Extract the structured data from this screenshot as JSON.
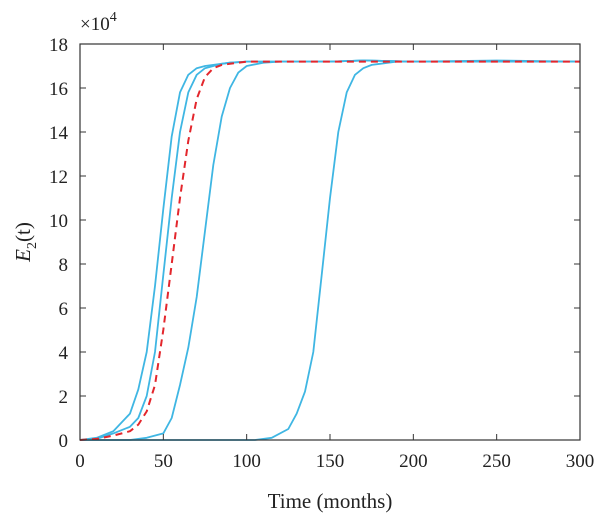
{
  "chart_data": {
    "type": "line",
    "title": "",
    "xlabel": "Time (months)",
    "ylabel_main": "E",
    "ylabel_sub": "2",
    "ylabel_tail": "(t)",
    "y_multiplier_base": "×10",
    "y_multiplier_exp": "4",
    "xlim": [
      0,
      300
    ],
    "ylim": [
      0,
      18
    ],
    "xticks": [
      0,
      50,
      100,
      150,
      200,
      250,
      300
    ],
    "yticks": [
      0,
      2,
      4,
      6,
      8,
      10,
      12,
      14,
      16,
      18
    ],
    "grid": false,
    "legend": false,
    "colors": {
      "solid": "#3fb6e3",
      "dashed": "#e3262c",
      "axis": "#333333"
    },
    "series": [
      {
        "style": "solid",
        "x": [
          0,
          10,
          20,
          30,
          35,
          40,
          45,
          50,
          55,
          60,
          65,
          70,
          75,
          80,
          85,
          90,
          100,
          120,
          150,
          170,
          200,
          250,
          300
        ],
        "y": [
          0,
          0.1,
          0.4,
          1.2,
          2.3,
          4.0,
          7.0,
          10.5,
          13.8,
          15.8,
          16.6,
          16.9,
          17.0,
          17.05,
          17.1,
          17.15,
          17.2,
          17.2,
          17.2,
          17.25,
          17.2,
          17.2,
          17.2
        ]
      },
      {
        "style": "solid",
        "x": [
          0,
          10,
          20,
          30,
          35,
          40,
          45,
          50,
          55,
          60,
          65,
          70,
          75,
          80,
          85,
          90,
          100,
          120,
          150,
          170,
          200,
          250,
          300
        ],
        "y": [
          0,
          0.05,
          0.3,
          0.6,
          1.0,
          2.0,
          4.0,
          7.5,
          11.0,
          14.0,
          15.8,
          16.6,
          16.9,
          17.0,
          17.1,
          17.15,
          17.2,
          17.2,
          17.2,
          17.25,
          17.2,
          17.2,
          17.2
        ]
      },
      {
        "style": "dashed",
        "x": [
          0,
          10,
          20,
          30,
          35,
          40,
          45,
          50,
          55,
          60,
          65,
          70,
          75,
          80,
          85,
          90,
          100,
          120,
          150,
          170,
          200,
          250,
          300
        ],
        "y": [
          0,
          0.05,
          0.2,
          0.4,
          0.7,
          1.3,
          2.5,
          5.0,
          8.0,
          11.0,
          13.6,
          15.5,
          16.5,
          16.9,
          17.05,
          17.1,
          17.2,
          17.2,
          17.2,
          17.2,
          17.2,
          17.2,
          17.2
        ]
      },
      {
        "style": "solid",
        "x": [
          0,
          30,
          40,
          50,
          55,
          60,
          65,
          70,
          75,
          80,
          85,
          90,
          95,
          100,
          110,
          120,
          150,
          170,
          200,
          250,
          300
        ],
        "y": [
          0,
          0,
          0.1,
          0.3,
          1.0,
          2.5,
          4.2,
          6.5,
          9.5,
          12.5,
          14.7,
          16.0,
          16.7,
          17.0,
          17.15,
          17.2,
          17.2,
          17.25,
          17.2,
          17.2,
          17.2
        ]
      },
      {
        "style": "solid",
        "x": [
          0,
          105,
          115,
          125,
          130,
          135,
          140,
          145,
          150,
          155,
          160,
          165,
          170,
          175,
          180,
          190,
          200,
          250,
          300
        ],
        "y": [
          0,
          0,
          0.1,
          0.5,
          1.2,
          2.2,
          4.0,
          7.5,
          11.0,
          14.0,
          15.8,
          16.6,
          16.9,
          17.05,
          17.1,
          17.2,
          17.2,
          17.25,
          17.2
        ]
      }
    ]
  }
}
